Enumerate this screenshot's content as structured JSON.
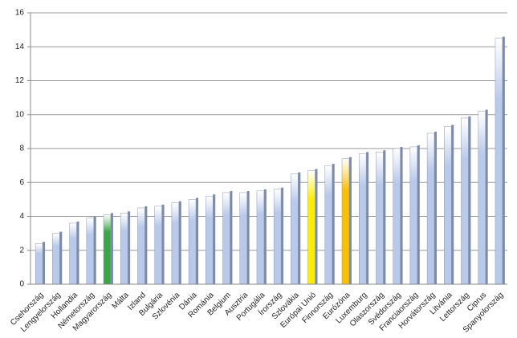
{
  "chart_data": {
    "type": "bar",
    "categories": [
      "Csehország",
      "Lengyelország",
      "Hollandia",
      "Németország",
      "Magyarország",
      "Málta",
      "Izland",
      "Bulgária",
      "Szlovénia",
      "Dánia",
      "Románia",
      "Belgium",
      "Ausztria",
      "Portugália",
      "Írország",
      "Szlovákia",
      "Európai Unió",
      "Finnország",
      "Eurózóna",
      "Luxemburg",
      "Olaszország",
      "Svédország",
      "Franciaország",
      "Horvátország",
      "Litvánia",
      "Lettország",
      "Ciprus",
      "Spanyolország"
    ],
    "values": [
      2.4,
      3.0,
      3.6,
      3.9,
      4.1,
      4.2,
      4.5,
      4.6,
      4.8,
      5.0,
      5.2,
      5.4,
      5.4,
      5.5,
      5.6,
      6.5,
      6.7,
      7.0,
      7.4,
      7.7,
      7.8,
      8.0,
      8.1,
      8.9,
      9.3,
      9.8,
      10.2,
      14.5
    ],
    "colors": [
      "#b9c9ea",
      "#b9c9ea",
      "#b9c9ea",
      "#b9c9ea",
      "#3aa645",
      "#b9c9ea",
      "#b9c9ea",
      "#b9c9ea",
      "#b9c9ea",
      "#b9c9ea",
      "#b9c9ea",
      "#b9c9ea",
      "#b9c9ea",
      "#b9c9ea",
      "#b9c9ea",
      "#b9c9ea",
      "#ffee00",
      "#b9c9ea",
      "#ffbf00",
      "#b9c9ea",
      "#b9c9ea",
      "#b9c9ea",
      "#b9c9ea",
      "#b9c9ea",
      "#b9c9ea",
      "#b9c9ea",
      "#b9c9ea",
      "#b9c9ea"
    ],
    "ylim": [
      0,
      16
    ],
    "yticks": [
      0,
      2,
      4,
      6,
      8,
      10,
      12,
      14,
      16
    ],
    "grid": true
  }
}
